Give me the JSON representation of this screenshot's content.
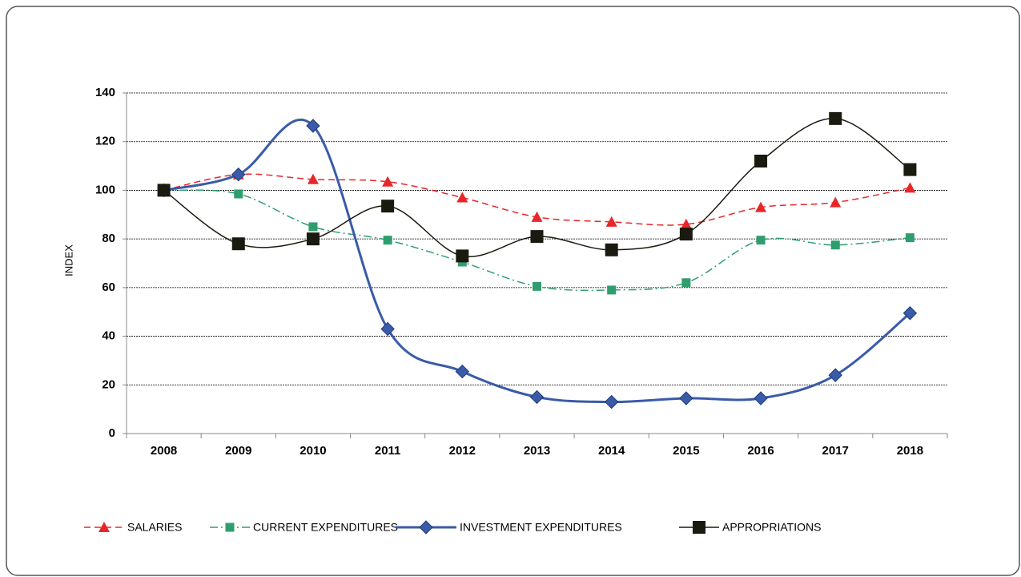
{
  "chart_data": {
    "type": "line",
    "y_label": "INDEX",
    "categories": [
      "2008",
      "2009",
      "2010",
      "2011",
      "2012",
      "2013",
      "2014",
      "2015",
      "2016",
      "2017",
      "2018"
    ],
    "series": [
      {
        "name": "SALARIES",
        "color": "#e8262a",
        "marker": "triangle",
        "line_style": "dashed",
        "values": [
          100,
          106.5,
          104.5,
          103.5,
          97,
          89,
          87,
          86,
          93,
          95,
          101
        ]
      },
      {
        "name": "CURRENT EXPENDITURES",
        "color": "#2e9e6e",
        "marker": "square",
        "line_style": "dashdot",
        "values": [
          100,
          98.5,
          85,
          79.5,
          70.5,
          60.5,
          59,
          62,
          79.5,
          77.5,
          80.5
        ]
      },
      {
        "name": "INVESTMENT EXPENDITURES",
        "color": "#3a5ba8",
        "marker": "diamond",
        "line_style": "solid",
        "values": [
          100,
          106.5,
          126.5,
          43,
          25.5,
          15,
          13,
          14.5,
          14.5,
          24,
          49.5
        ]
      },
      {
        "name": "APPROPRIATIONS",
        "color": "#1a1a10",
        "marker": "square",
        "line_style": "solid",
        "values": [
          100,
          78,
          80,
          93.5,
          73,
          81,
          75.5,
          82,
          112,
          129.5,
          108.5
        ]
      }
    ],
    "ylim": [
      0,
      140
    ],
    "yticks": [
      0,
      20,
      40,
      60,
      80,
      100,
      120,
      140
    ],
    "grid": true,
    "smooth": true,
    "legend_position": "bottom"
  }
}
